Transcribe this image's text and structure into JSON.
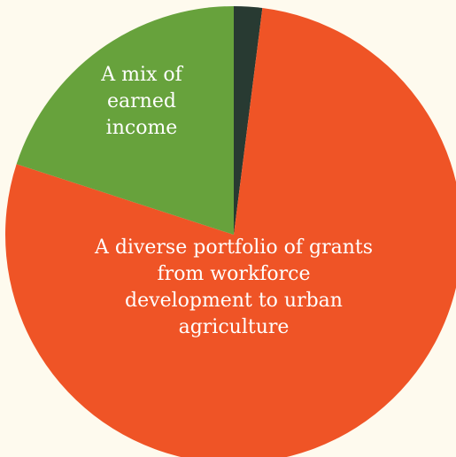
{
  "chart_data": {
    "type": "pie",
    "title": "",
    "legend": "none",
    "background_color": "#fefaee",
    "slices": [
      {
        "label": "",
        "value": 2,
        "color": "#283a32"
      },
      {
        "label": "A diverse portfolio of grants from workforce development to urban agriculture",
        "label_lines": [
          "A diverse portfolio of grants",
          "from workforce",
          "development to urban",
          "agriculture"
        ],
        "value": 78,
        "color": "#ef5426"
      },
      {
        "label": "A mix of earned income",
        "label_lines": [
          "A mix of",
          "earned",
          "income"
        ],
        "value": 20,
        "color": "#67a23c"
      }
    ]
  }
}
